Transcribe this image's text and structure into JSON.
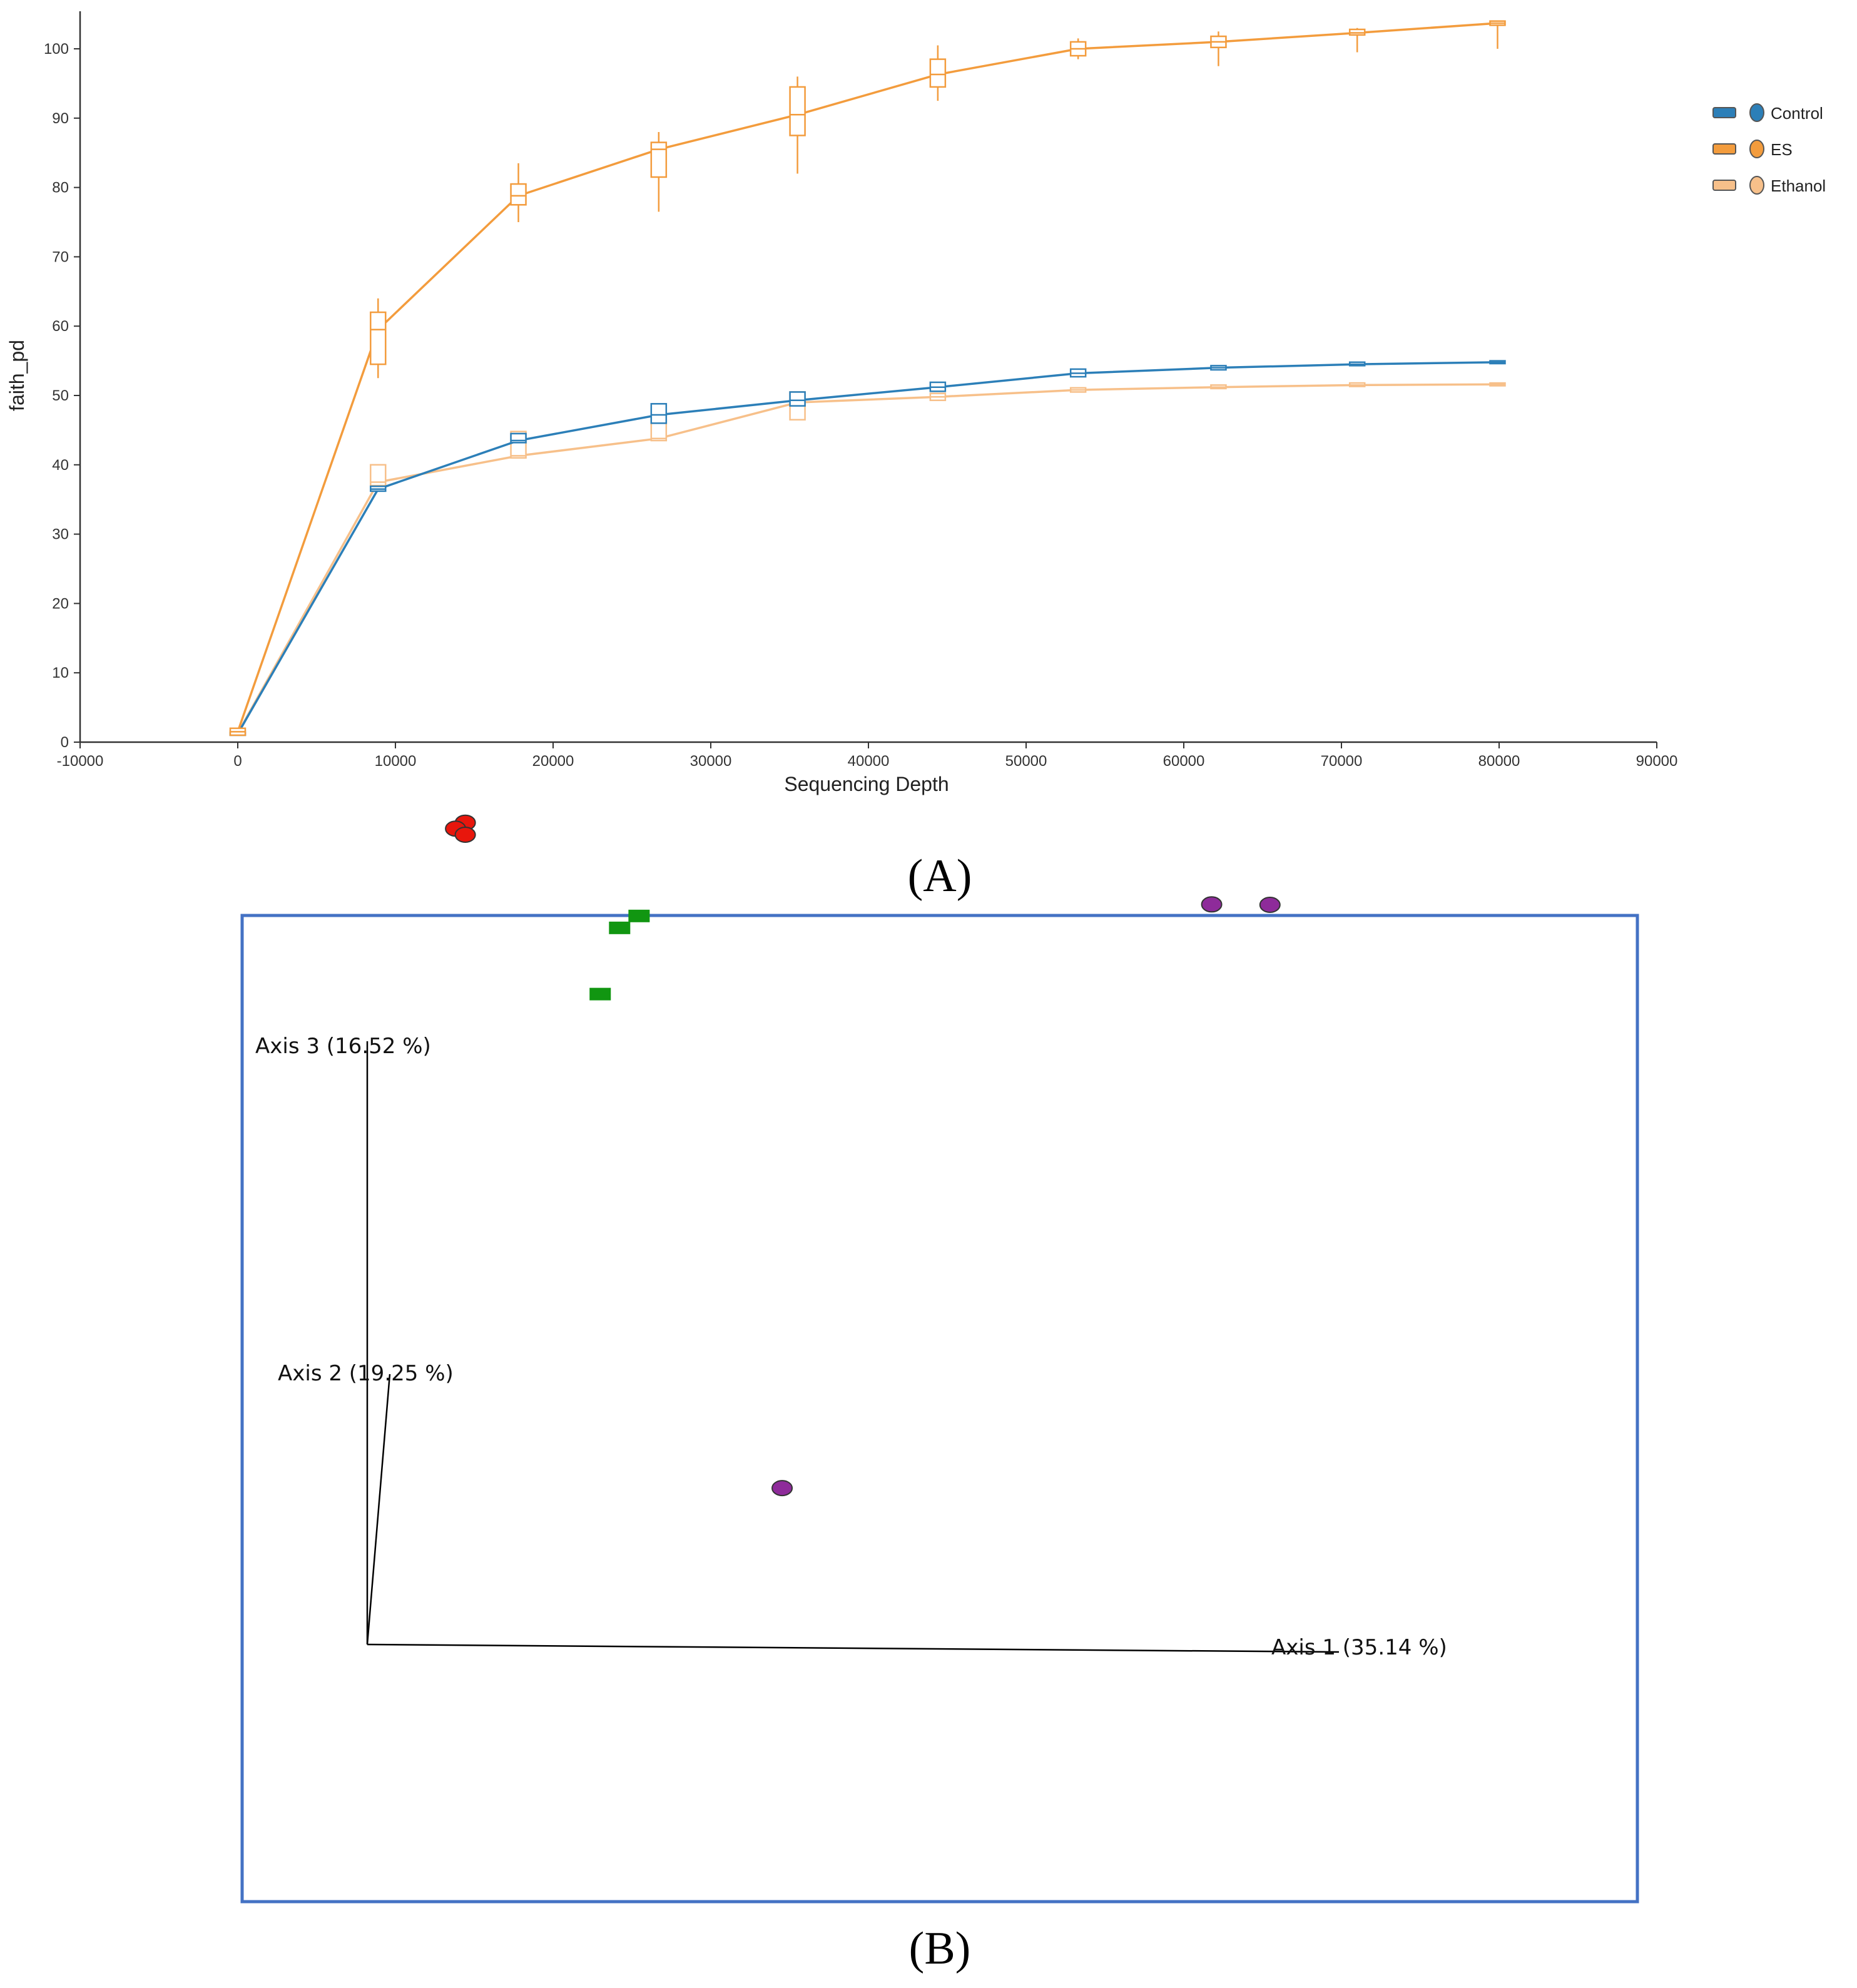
{
  "panel_labels": {
    "a": "(A)",
    "b": "(B)"
  },
  "colors": {
    "control": "#2c7fb8",
    "es": "#f39c3d",
    "ethanol": "#f7c08a",
    "panel_b_border": "#4472c4",
    "group_red": "#e8160c",
    "group_green": "#119611",
    "group_purple": "#8e2b9a"
  },
  "chart_data": [
    {
      "type": "line",
      "panel": "A",
      "title": "",
      "xlabel": "Sequencing Depth",
      "ylabel": "faith_pd",
      "xlim": [
        -10000,
        90000
      ],
      "ylim": [
        0,
        100
      ],
      "xticks": [
        -10000,
        0,
        10000,
        20000,
        30000,
        40000,
        50000,
        60000,
        70000,
        80000,
        90000
      ],
      "yticks": [
        0,
        10,
        20,
        30,
        40,
        50,
        60,
        70,
        80,
        90,
        100
      ],
      "legend": [
        "Control",
        "ES",
        "Ethanol"
      ],
      "legend_position": "right",
      "x": [
        0,
        8900,
        17800,
        26700,
        35500,
        44400,
        53300,
        62200,
        71000,
        79900
      ],
      "series": [
        {
          "name": "Control",
          "values": [
            1.2,
            36.5,
            43.5,
            47.2,
            49.3,
            51.2,
            53.2,
            54.0,
            54.5,
            54.8
          ],
          "boxes": [
            [
              1,
              1.4
            ],
            [
              36.2,
              36.9
            ],
            [
              43.2,
              44.5
            ],
            [
              46,
              48.8
            ],
            [
              48.5,
              50.5
            ],
            [
              50.6,
              51.9
            ],
            [
              52.7,
              53.8
            ],
            [
              53.7,
              54.3
            ],
            [
              54.3,
              54.8
            ],
            [
              54.6,
              55
            ]
          ]
        },
        {
          "name": "ES",
          "values": [
            1.5,
            59.5,
            78.8,
            85.5,
            90.5,
            96.3,
            100.0,
            101.0,
            102.3,
            103.7
          ],
          "boxes": [
            [
              1,
              2
            ],
            [
              54.5,
              62
            ],
            [
              77.5,
              80.5
            ],
            [
              81.5,
              86.5
            ],
            [
              87.5,
              94.5
            ],
            [
              94.5,
              98.5
            ],
            [
              99,
              101
            ],
            [
              100.2,
              101.8
            ],
            [
              102,
              102.8
            ],
            [
              103.4,
              104
            ]
          ],
          "whiskers": [
            [
              1,
              2
            ],
            [
              52.5,
              64
            ],
            [
              75,
              83.5
            ],
            [
              76.5,
              88
            ],
            [
              82,
              96
            ],
            [
              92.5,
              100.5
            ],
            [
              98.5,
              101.5
            ],
            [
              97.5,
              102.5
            ],
            [
              99.5,
              103
            ],
            [
              100,
              104
            ]
          ]
        },
        {
          "name": "Ethanol",
          "values": [
            1.3,
            37.5,
            41.3,
            43.8,
            49.0,
            49.8,
            50.8,
            51.2,
            51.5,
            51.6
          ],
          "boxes": [
            [
              1,
              1.6
            ],
            [
              37,
              40
            ],
            [
              41,
              44.8
            ],
            [
              43.5,
              46.5
            ],
            [
              46.5,
              50.5
            ],
            [
              49.3,
              50.3
            ],
            [
              50.5,
              51.1
            ],
            [
              51,
              51.5
            ],
            [
              51.3,
              51.8
            ],
            [
              51.4,
              51.8
            ]
          ]
        }
      ]
    },
    {
      "type": "scatter",
      "panel": "B",
      "title": "",
      "axis_labels": [
        "Axis 1 (35.14 %)",
        "Axis 2 (19.25 %)",
        "Axis 3 (16.52 %)"
      ],
      "groups": [
        {
          "name": "red",
          "marker": "circle",
          "points": [
            [
              0.08,
              0.9,
              0.96
            ],
            [
              0.07,
              0.9,
              0.95
            ],
            [
              0.08,
              0.9,
              0.94
            ]
          ]
        },
        {
          "name": "green",
          "marker": "square",
          "points": [
            [
              0.26,
              0.85,
              0.83
            ],
            [
              0.24,
              0.85,
              0.81
            ],
            [
              0.22,
              0.85,
              0.7
            ]
          ]
        },
        {
          "name": "purple",
          "marker": "circle",
          "points": [
            [
              0.91,
              0.82,
              0.87
            ],
            [
              0.85,
              0.82,
              0.87
            ],
            [
              0.42,
              0.3,
              0.13
            ]
          ]
        }
      ]
    }
  ]
}
